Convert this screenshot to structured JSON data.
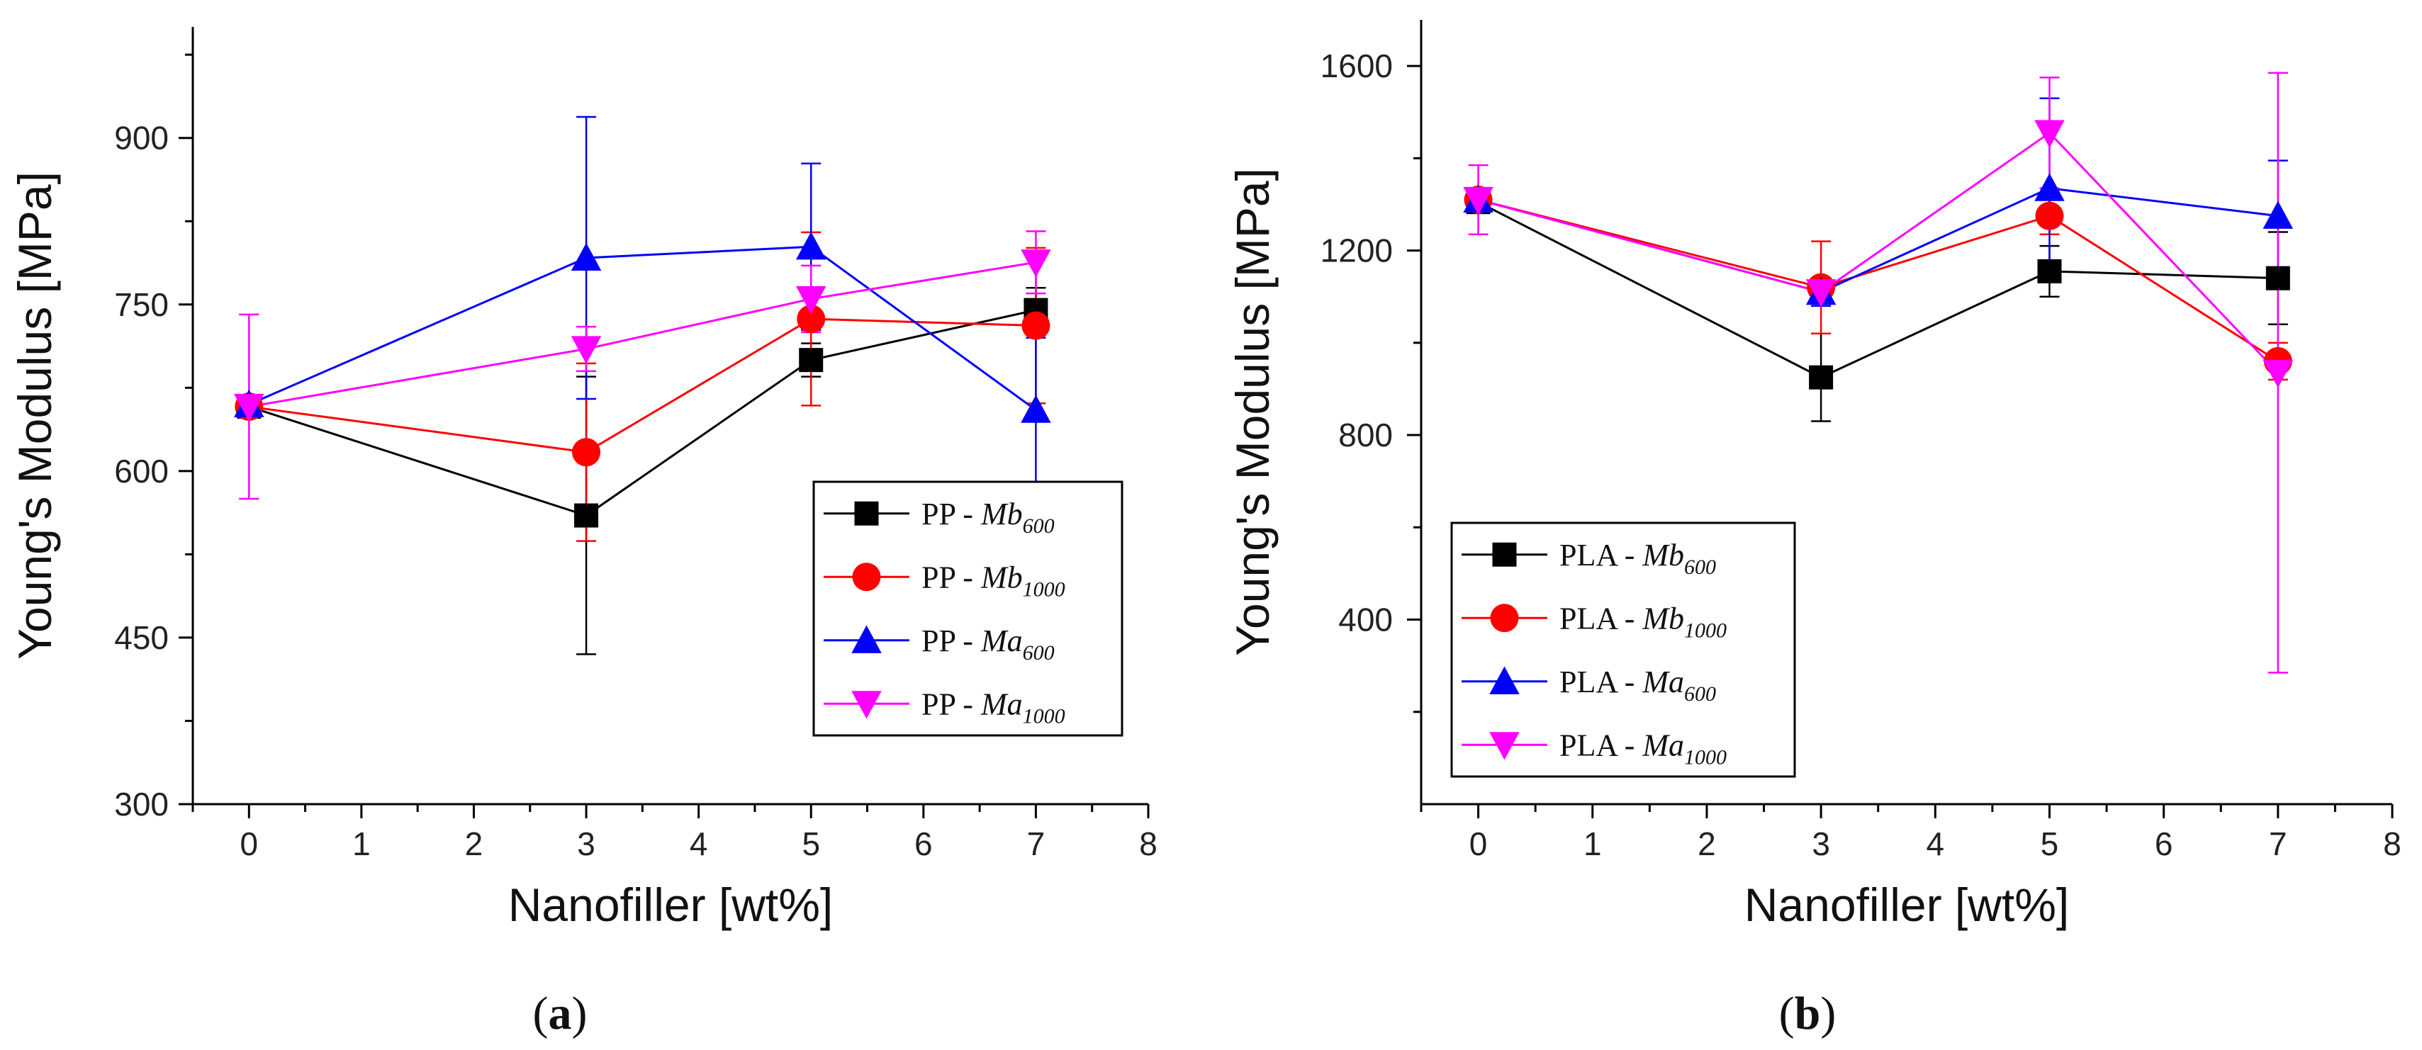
{
  "chart_data": [
    {
      "type": "line",
      "panel": "a",
      "caption": "(a)",
      "xlabel": "Nanofiller [wt%]",
      "ylabel": "Young's Modulus [MPa]",
      "xlim": [
        -0.5,
        8
      ],
      "ylim": [
        300,
        1000
      ],
      "xticks": [
        0,
        1,
        2,
        3,
        4,
        5,
        6,
        7,
        8
      ],
      "yticks": [
        300,
        450,
        600,
        750,
        900
      ],
      "legend_position": "center-right",
      "series": [
        {
          "name": "PP - Mb600",
          "prefix": "PP - ",
          "sym": "Mb",
          "sub": "600",
          "color": "#000000",
          "marker": "square",
          "x": [
            0,
            3,
            5,
            7
          ],
          "y": [
            658,
            560,
            700,
            745
          ],
          "err": [
            0,
            125,
            15,
            20
          ]
        },
        {
          "name": "PP - Mb1000",
          "prefix": "PP - ",
          "sym": "Mb",
          "sub": "1000",
          "color": "#ff0000",
          "marker": "circle",
          "x": [
            0,
            3,
            5,
            7
          ],
          "y": [
            658,
            617,
            737,
            731
          ],
          "err": [
            0,
            80,
            78,
            70
          ]
        },
        {
          "name": "PP - Ma600",
          "prefix": "PP - ",
          "sym": "Ma",
          "sub": "600",
          "color": "#0000ff",
          "marker": "triangle-up",
          "x": [
            0,
            3,
            5,
            7
          ],
          "y": [
            660,
            792,
            802,
            655
          ],
          "err": [
            0,
            127,
            75,
            65
          ]
        },
        {
          "name": "PP - Ma1000",
          "prefix": "PP - ",
          "sym": "Ma",
          "sub": "1000",
          "color": "#ff00ff",
          "marker": "triangle-down",
          "x": [
            0,
            3,
            5,
            7
          ],
          "y": [
            658,
            710,
            755,
            788
          ],
          "err": [
            83,
            20,
            30,
            28
          ]
        }
      ]
    },
    {
      "type": "line",
      "panel": "b",
      "caption": "(b)",
      "xlabel": "Nanofiller [wt%]",
      "ylabel": "Young's Modulus [MPa]",
      "xlim": [
        -0.5,
        8
      ],
      "ylim": [
        0,
        1700
      ],
      "xticks": [
        0,
        1,
        2,
        3,
        4,
        5,
        6,
        7,
        8
      ],
      "yticks": [
        400,
        800,
        1200,
        1600
      ],
      "legend_position": "bottom-left",
      "series": [
        {
          "name": "PLA - Mb600",
          "prefix": "PLA - ",
          "sym": "Mb",
          "sub": "600",
          "color": "#000000",
          "marker": "square",
          "x": [
            0,
            3,
            5,
            7
          ],
          "y": [
            1305,
            925,
            1155,
            1140
          ],
          "err": [
            15,
            95,
            55,
            100
          ]
        },
        {
          "name": "PLA - Mb1000",
          "prefix": "PLA - ",
          "sym": "Mb",
          "sub": "1000",
          "color": "#ff0000",
          "marker": "circle",
          "x": [
            0,
            3,
            5,
            7
          ],
          "y": [
            1310,
            1120,
            1275,
            960
          ],
          "err": [
            15,
            100,
            40,
            40
          ]
        },
        {
          "name": "PLA - Ma600",
          "prefix": "PLA - ",
          "sym": "Ma",
          "sub": "600",
          "color": "#0000ff",
          "marker": "triangle-up",
          "x": [
            0,
            3,
            5,
            7
          ],
          "y": [
            1310,
            1110,
            1335,
            1275
          ],
          "err": [
            15,
            30,
            195,
            120
          ]
        },
        {
          "name": "PLA - Ma1000",
          "prefix": "PLA - ",
          "sym": "Ma",
          "sub": "1000",
          "color": "#ff00ff",
          "marker": "triangle-down",
          "x": [
            0,
            3,
            5,
            7
          ],
          "y": [
            1310,
            1110,
            1455,
            935
          ],
          "err": [
            75,
            0,
            120,
            650
          ]
        }
      ]
    }
  ]
}
